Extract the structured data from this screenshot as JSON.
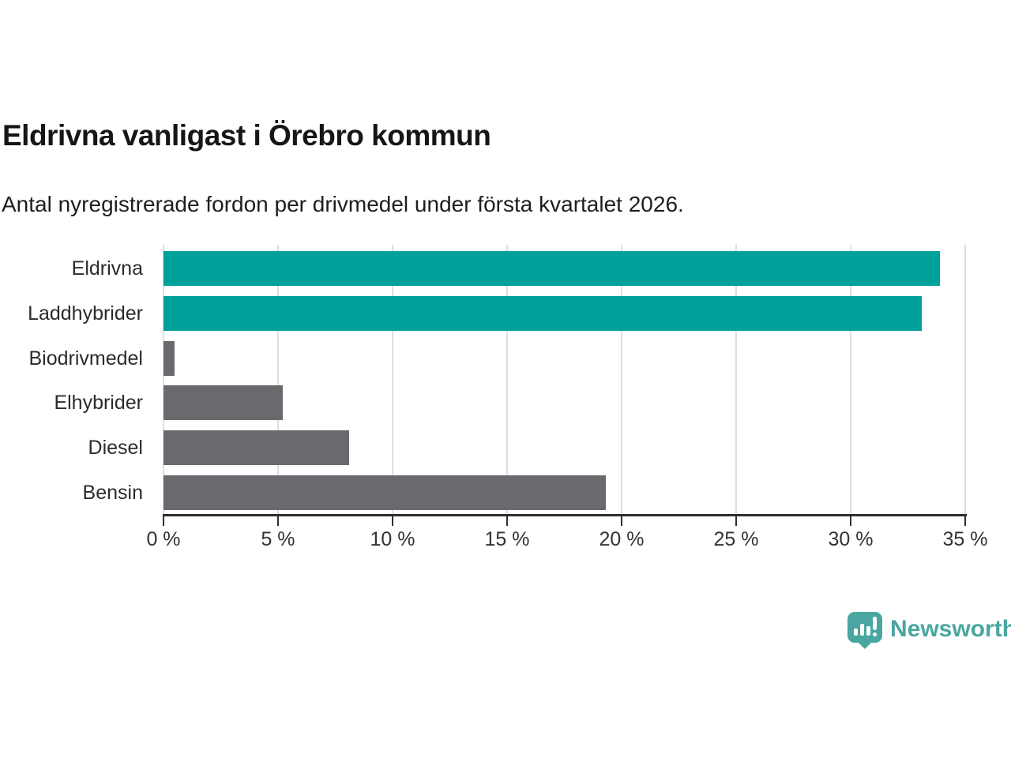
{
  "header": {
    "title": "Eldrivna vanligast i Örebro kommun",
    "subtitle": "Antal nyregistrerade fordon per drivmedel under första kvartalet 2026."
  },
  "footer": {
    "brand": "Newsworthy"
  },
  "colors": {
    "bar_teal": "#00A09B",
    "bar_gray": "#6A6A6E",
    "gridline": "#DEDEDE",
    "axis": "#2E2E2E",
    "brand_teal": "#4AA6A0"
  },
  "chart_data": {
    "type": "bar",
    "orientation": "horizontal",
    "title": "Eldrivna vanligast i Örebro kommun",
    "subtitle": "Antal nyregistrerade fordon per drivmedel under första kvartalet 2026.",
    "categories": [
      "Eldrivna",
      "Laddhybrider",
      "Biodrivmedel",
      "Elhybrider",
      "Diesel",
      "Bensin"
    ],
    "values": [
      33.9,
      33.1,
      0.5,
      5.2,
      8.1,
      19.3
    ],
    "unit": "%",
    "bar_colors": [
      "#00A09B",
      "#00A09B",
      "#6A6A6E",
      "#6A6A6E",
      "#6A6A6E",
      "#6A6A6E"
    ],
    "xlim": [
      0,
      35
    ],
    "x_ticks": [
      0,
      5,
      10,
      15,
      20,
      25,
      30,
      35
    ],
    "x_tick_labels": [
      "0 %",
      "5 %",
      "10 %",
      "15 %",
      "20 %",
      "25 %",
      "30 %",
      "35 %"
    ],
    "grid": true,
    "legend": false
  }
}
